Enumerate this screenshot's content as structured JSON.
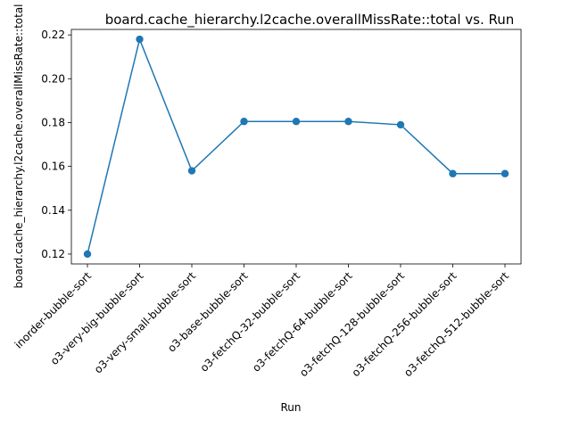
{
  "chart_data": {
    "type": "line",
    "title": "board.cache_hierarchy.l2cache.overallMissRate::total vs. Run",
    "xlabel": "Run",
    "ylabel": "board.cache_hierarchy.l2cache.overallMissRate::total",
    "categories": [
      "inorder-bubble-sort",
      "o3-very-big-bubble-sort",
      "o3-very-small-bubble-sort",
      "o3-base-bubble-sort",
      "o3-fetchQ-32-bubble-sort",
      "o3-fetchQ-64-bubble-sort",
      "o3-fetchQ-128-bubble-sort",
      "o3-fetchQ-256-bubble-sort",
      "o3-fetchQ-512-bubble-sort"
    ],
    "values": [
      0.12,
      0.218,
      0.158,
      0.1805,
      0.1805,
      0.1805,
      0.179,
      0.1567,
      0.1567
    ],
    "ylim": [
      0.1155,
      0.2225
    ],
    "yticks": [
      "0.12",
      "0.14",
      "0.16",
      "0.18",
      "0.20",
      "0.22"
    ],
    "grid": false,
    "line_color": "#1f77b4"
  }
}
